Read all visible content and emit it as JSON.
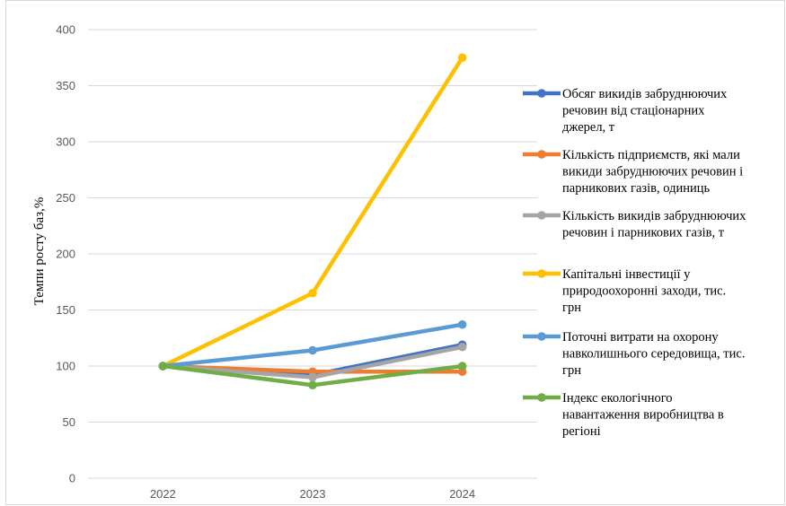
{
  "chart_data": {
    "type": "line",
    "title": "",
    "xlabel": "",
    "ylabel": "Темпи росту баз,%",
    "categories": [
      "2022",
      "2023",
      "2024"
    ],
    "ylim": [
      0,
      400
    ],
    "yticks": [
      0,
      50,
      100,
      150,
      200,
      250,
      300,
      350,
      400
    ],
    "grid": true,
    "legend_position": "right",
    "series": [
      {
        "name": "Обсяг викидів забруднюючих речовин від стаціонарних джерел, т",
        "legend_lines": [
          "Обсяг викидів забруднюючих",
          "речовин від стаціонарних",
          "джерел, т"
        ],
        "color": "#4472C4",
        "values": [
          100,
          92,
          119
        ]
      },
      {
        "name": "Кількість підприємств, які мали викиди забруднюючих речовин і парникових газів, одиниць",
        "legend_lines": [
          "Кількість підприємств, які мали",
          "викиди забруднюючих речовин і",
          "парникових газів, одиниць"
        ],
        "color": "#ED7D31",
        "values": [
          100,
          95,
          95
        ]
      },
      {
        "name": "Кількість викидів забруднюючих речовин і парникових газів, т",
        "legend_lines": [
          "Кількість викидів забруднюючих",
          "речовин і парникових газів, т"
        ],
        "color": "#A5A5A5",
        "values": [
          100,
          90,
          117
        ]
      },
      {
        "name": "Капітальні інвестиції у природоохоронні заходи, тис. грн",
        "legend_lines": [
          "Капітальні інвестиції у",
          "природоохоронні заходи, тис.",
          "грн"
        ],
        "color": "#FFC000",
        "values": [
          100,
          165,
          375
        ]
      },
      {
        "name": "Поточні витрати на охорону навколишнього середовища, тис. грн",
        "legend_lines": [
          "Поточні витрати на охорону",
          "навколишнього середовища, тис.",
          "грн"
        ],
        "color": "#5B9BD5",
        "values": [
          100,
          114,
          137
        ]
      },
      {
        "name": "Індекс екологічного навантаження виробництва в регіоні",
        "legend_lines": [
          "Індекс екологічного",
          "навантаження виробництва в",
          "регіоні"
        ],
        "color": "#70AD47",
        "values": [
          100,
          83,
          100
        ]
      }
    ]
  }
}
